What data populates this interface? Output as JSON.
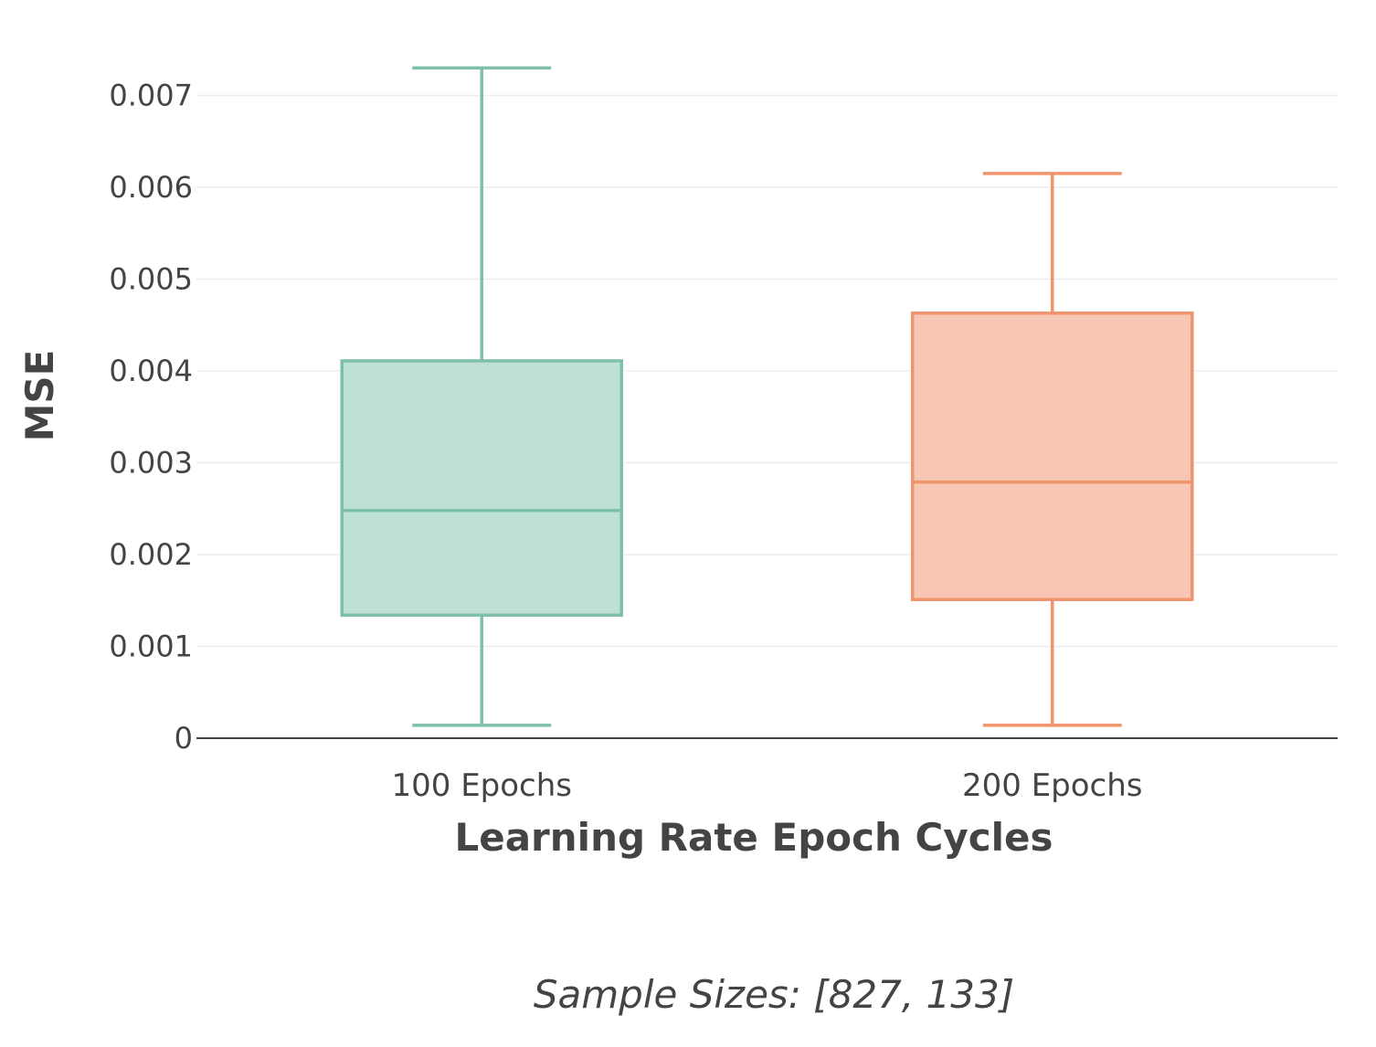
{
  "chart_data": {
    "type": "box",
    "title": "",
    "xlabel": "Learning Rate Epoch Cycles",
    "ylabel": "MSE",
    "ylim": [
      0,
      0.0075
    ],
    "y_ticks": [
      0,
      0.001,
      0.002,
      0.003,
      0.004,
      0.005,
      0.006,
      0.007
    ],
    "y_tick_labels": [
      "0",
      "0.001",
      "0.002",
      "0.003",
      "0.004",
      "0.005",
      "0.006",
      "0.007"
    ],
    "grid": true,
    "legend": "none",
    "annotation": "Sample Sizes: [827, 133]",
    "categories": [
      "100 Epochs",
      "200 Epochs"
    ],
    "boxes": [
      {
        "category": "100 Epochs",
        "min": 0.00014,
        "q1": 0.00134,
        "median": 0.00248,
        "q3": 0.00411,
        "max": 0.0073,
        "line_color": "#7fc1a7",
        "fill_color": "#bfe0d4"
      },
      {
        "category": "200 Epochs",
        "min": 0.00014,
        "q1": 0.00151,
        "median": 0.00279,
        "q3": 0.00463,
        "max": 0.00615,
        "line_color": "#f0946d",
        "fill_color": "#f7c6b5"
      }
    ]
  }
}
